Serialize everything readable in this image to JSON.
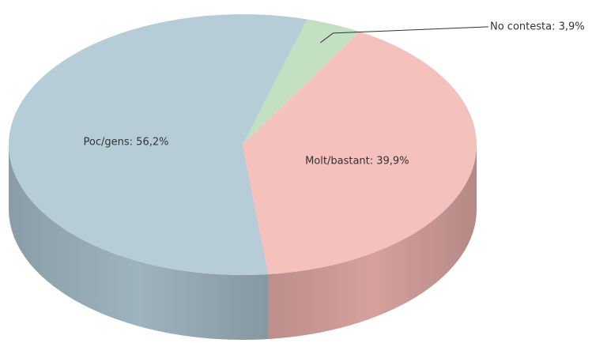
{
  "chart_data": {
    "type": "pie3d",
    "values": [
      3.9,
      39.9,
      56.2
    ],
    "value_labels": [
      "No contesta: 3,9%",
      "Molt/bastant: 39,9%",
      "Poc/gens: 56,2%"
    ],
    "colors": [
      "#c3e0c3",
      "#f4c1bd",
      "#b6cdd7"
    ],
    "side_colors": [
      "#a7c4a7",
      "#d6a19d",
      "#9db3bd"
    ]
  }
}
